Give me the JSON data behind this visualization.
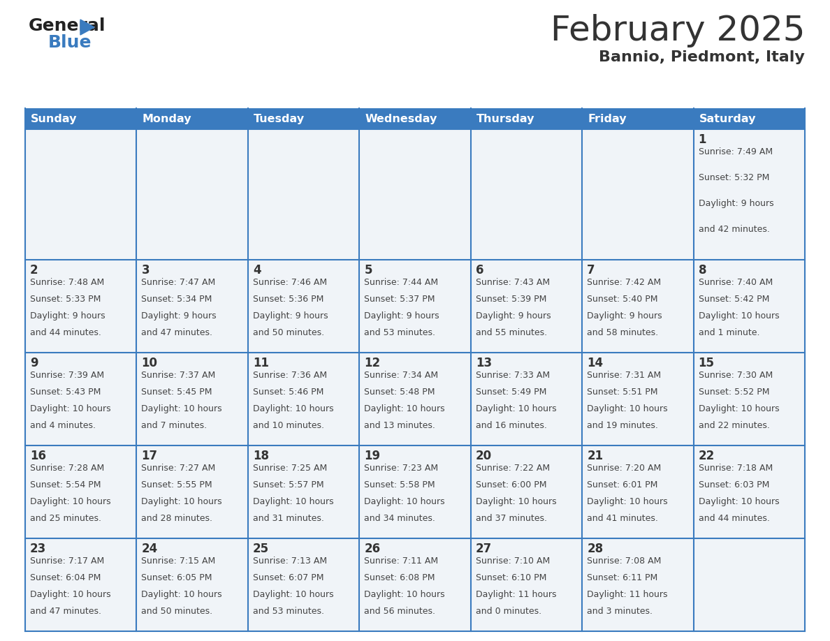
{
  "title": "February 2025",
  "subtitle": "Bannio, Piedmont, Italy",
  "header_color": "#3a7bbf",
  "header_text_color": "#ffffff",
  "day_names": [
    "Sunday",
    "Monday",
    "Tuesday",
    "Wednesday",
    "Thursday",
    "Friday",
    "Saturday"
  ],
  "background_color": "#ffffff",
  "cell_bg": "#f0f4f8",
  "grid_line_color": "#3a7bbf",
  "date_color": "#333333",
  "text_color": "#444444",
  "logo_general_color": "#222222",
  "logo_blue_color": "#3a7bbf",
  "logo_triangle_color": "#3a7bbf",
  "days": [
    {
      "day": 1,
      "col": 6,
      "row": 0,
      "sunrise": "7:49 AM",
      "sunset": "5:32 PM",
      "daylight": "9 hours",
      "daylight2": "and 42 minutes."
    },
    {
      "day": 2,
      "col": 0,
      "row": 1,
      "sunrise": "7:48 AM",
      "sunset": "5:33 PM",
      "daylight": "9 hours",
      "daylight2": "and 44 minutes."
    },
    {
      "day": 3,
      "col": 1,
      "row": 1,
      "sunrise": "7:47 AM",
      "sunset": "5:34 PM",
      "daylight": "9 hours",
      "daylight2": "and 47 minutes."
    },
    {
      "day": 4,
      "col": 2,
      "row": 1,
      "sunrise": "7:46 AM",
      "sunset": "5:36 PM",
      "daylight": "9 hours",
      "daylight2": "and 50 minutes."
    },
    {
      "day": 5,
      "col": 3,
      "row": 1,
      "sunrise": "7:44 AM",
      "sunset": "5:37 PM",
      "daylight": "9 hours",
      "daylight2": "and 53 minutes."
    },
    {
      "day": 6,
      "col": 4,
      "row": 1,
      "sunrise": "7:43 AM",
      "sunset": "5:39 PM",
      "daylight": "9 hours",
      "daylight2": "and 55 minutes."
    },
    {
      "day": 7,
      "col": 5,
      "row": 1,
      "sunrise": "7:42 AM",
      "sunset": "5:40 PM",
      "daylight": "9 hours",
      "daylight2": "and 58 minutes."
    },
    {
      "day": 8,
      "col": 6,
      "row": 1,
      "sunrise": "7:40 AM",
      "sunset": "5:42 PM",
      "daylight": "10 hours",
      "daylight2": "and 1 minute."
    },
    {
      "day": 9,
      "col": 0,
      "row": 2,
      "sunrise": "7:39 AM",
      "sunset": "5:43 PM",
      "daylight": "10 hours",
      "daylight2": "and 4 minutes."
    },
    {
      "day": 10,
      "col": 1,
      "row": 2,
      "sunrise": "7:37 AM",
      "sunset": "5:45 PM",
      "daylight": "10 hours",
      "daylight2": "and 7 minutes."
    },
    {
      "day": 11,
      "col": 2,
      "row": 2,
      "sunrise": "7:36 AM",
      "sunset": "5:46 PM",
      "daylight": "10 hours",
      "daylight2": "and 10 minutes."
    },
    {
      "day": 12,
      "col": 3,
      "row": 2,
      "sunrise": "7:34 AM",
      "sunset": "5:48 PM",
      "daylight": "10 hours",
      "daylight2": "and 13 minutes."
    },
    {
      "day": 13,
      "col": 4,
      "row": 2,
      "sunrise": "7:33 AM",
      "sunset": "5:49 PM",
      "daylight": "10 hours",
      "daylight2": "and 16 minutes."
    },
    {
      "day": 14,
      "col": 5,
      "row": 2,
      "sunrise": "7:31 AM",
      "sunset": "5:51 PM",
      "daylight": "10 hours",
      "daylight2": "and 19 minutes."
    },
    {
      "day": 15,
      "col": 6,
      "row": 2,
      "sunrise": "7:30 AM",
      "sunset": "5:52 PM",
      "daylight": "10 hours",
      "daylight2": "and 22 minutes."
    },
    {
      "day": 16,
      "col": 0,
      "row": 3,
      "sunrise": "7:28 AM",
      "sunset": "5:54 PM",
      "daylight": "10 hours",
      "daylight2": "and 25 minutes."
    },
    {
      "day": 17,
      "col": 1,
      "row": 3,
      "sunrise": "7:27 AM",
      "sunset": "5:55 PM",
      "daylight": "10 hours",
      "daylight2": "and 28 minutes."
    },
    {
      "day": 18,
      "col": 2,
      "row": 3,
      "sunrise": "7:25 AM",
      "sunset": "5:57 PM",
      "daylight": "10 hours",
      "daylight2": "and 31 minutes."
    },
    {
      "day": 19,
      "col": 3,
      "row": 3,
      "sunrise": "7:23 AM",
      "sunset": "5:58 PM",
      "daylight": "10 hours",
      "daylight2": "and 34 minutes."
    },
    {
      "day": 20,
      "col": 4,
      "row": 3,
      "sunrise": "7:22 AM",
      "sunset": "6:00 PM",
      "daylight": "10 hours",
      "daylight2": "and 37 minutes."
    },
    {
      "day": 21,
      "col": 5,
      "row": 3,
      "sunrise": "7:20 AM",
      "sunset": "6:01 PM",
      "daylight": "10 hours",
      "daylight2": "and 41 minutes."
    },
    {
      "day": 22,
      "col": 6,
      "row": 3,
      "sunrise": "7:18 AM",
      "sunset": "6:03 PM",
      "daylight": "10 hours",
      "daylight2": "and 44 minutes."
    },
    {
      "day": 23,
      "col": 0,
      "row": 4,
      "sunrise": "7:17 AM",
      "sunset": "6:04 PM",
      "daylight": "10 hours",
      "daylight2": "and 47 minutes."
    },
    {
      "day": 24,
      "col": 1,
      "row": 4,
      "sunrise": "7:15 AM",
      "sunset": "6:05 PM",
      "daylight": "10 hours",
      "daylight2": "and 50 minutes."
    },
    {
      "day": 25,
      "col": 2,
      "row": 4,
      "sunrise": "7:13 AM",
      "sunset": "6:07 PM",
      "daylight": "10 hours",
      "daylight2": "and 53 minutes."
    },
    {
      "day": 26,
      "col": 3,
      "row": 4,
      "sunrise": "7:11 AM",
      "sunset": "6:08 PM",
      "daylight": "10 hours",
      "daylight2": "and 56 minutes."
    },
    {
      "day": 27,
      "col": 4,
      "row": 4,
      "sunrise": "7:10 AM",
      "sunset": "6:10 PM",
      "daylight": "11 hours",
      "daylight2": "and 0 minutes."
    },
    {
      "day": 28,
      "col": 5,
      "row": 4,
      "sunrise": "7:08 AM",
      "sunset": "6:11 PM",
      "daylight": "11 hours",
      "daylight2": "and 3 minutes."
    }
  ]
}
